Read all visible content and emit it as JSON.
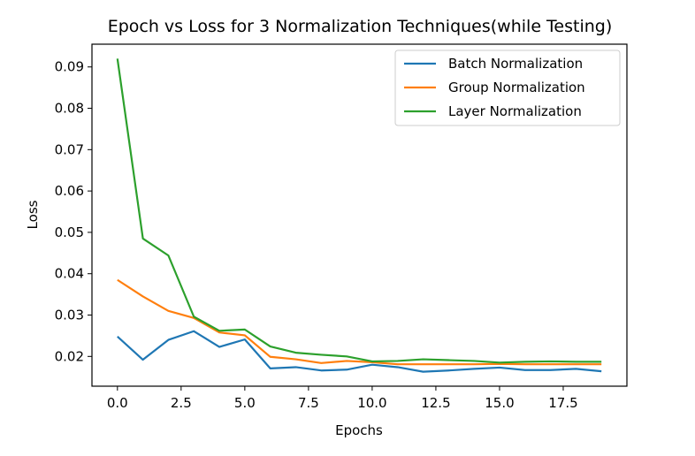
{
  "chart_data": {
    "type": "line",
    "title": "Epoch vs Loss for 3 Normalization Techniques(while Testing)",
    "xlabel": "Epochs",
    "ylabel": "Loss",
    "xlim": [
      -1,
      20
    ],
    "ylim": [
      0.0128,
      0.0955
    ],
    "xticks": [
      0,
      2.5,
      5,
      7.5,
      10,
      12.5,
      15,
      17.5
    ],
    "xtick_labels": [
      "0.0",
      "2.5",
      "5.0",
      "7.5",
      "10.0",
      "12.5",
      "15.0",
      "17.5"
    ],
    "yticks": [
      0.02,
      0.03,
      0.04,
      0.05,
      0.06,
      0.07,
      0.08,
      0.09
    ],
    "ytick_labels": [
      "0.02",
      "0.03",
      "0.04",
      "0.05",
      "0.06",
      "0.07",
      "0.08",
      "0.09"
    ],
    "grid": false,
    "legend_position": "top-right",
    "x": [
      0,
      1,
      2,
      3,
      4,
      5,
      6,
      7,
      8,
      9,
      10,
      11,
      12,
      13,
      14,
      15,
      16,
      17,
      18,
      19
    ],
    "series": [
      {
        "name": "Batch Normalization",
        "color": "#1f77b4",
        "values": [
          0.0248,
          0.0192,
          0.024,
          0.0261,
          0.0223,
          0.0241,
          0.0171,
          0.0174,
          0.0166,
          0.0168,
          0.018,
          0.0174,
          0.0163,
          0.0166,
          0.017,
          0.0173,
          0.0167,
          0.0167,
          0.017,
          0.0164
        ]
      },
      {
        "name": "Group Normalization",
        "color": "#ff7f0e",
        "values": [
          0.0385,
          0.0345,
          0.031,
          0.0293,
          0.0258,
          0.0251,
          0.0199,
          0.0193,
          0.0184,
          0.0189,
          0.0186,
          0.0181,
          0.0181,
          0.0181,
          0.0181,
          0.0182,
          0.0181,
          0.0181,
          0.0181,
          0.0181
        ]
      },
      {
        "name": "Layer Normalization",
        "color": "#2ca02c",
        "values": [
          0.092,
          0.0485,
          0.0444,
          0.0296,
          0.0262,
          0.0265,
          0.0224,
          0.0209,
          0.0204,
          0.02,
          0.0188,
          0.0189,
          0.0193,
          0.0191,
          0.0189,
          0.0185,
          0.0187,
          0.0188,
          0.0187,
          0.0187
        ]
      }
    ]
  }
}
